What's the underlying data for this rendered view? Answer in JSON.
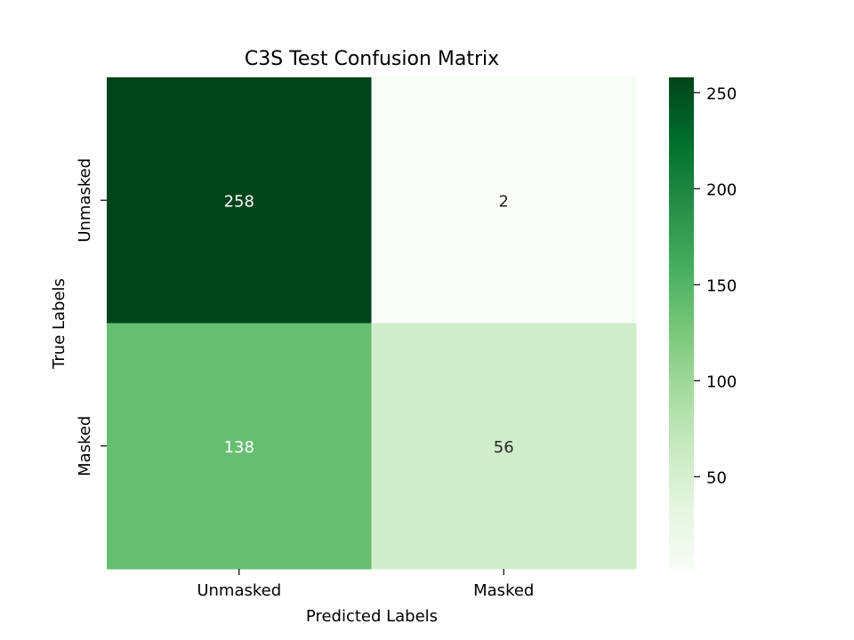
{
  "chart_data": {
    "type": "heatmap",
    "title": "C3S Test Confusion Matrix",
    "xlabel": "Predicted Labels",
    "ylabel": "True Labels",
    "x_categories": [
      "Unmasked",
      "Masked"
    ],
    "y_categories": [
      "Unmasked",
      "Masked"
    ],
    "values": [
      [
        258,
        2
      ],
      [
        138,
        56
      ]
    ],
    "colormap": "Greens",
    "vmin": 2,
    "vmax": 258,
    "colorbar_ticks": [
      50,
      100,
      150,
      200,
      250
    ],
    "grid": false
  }
}
